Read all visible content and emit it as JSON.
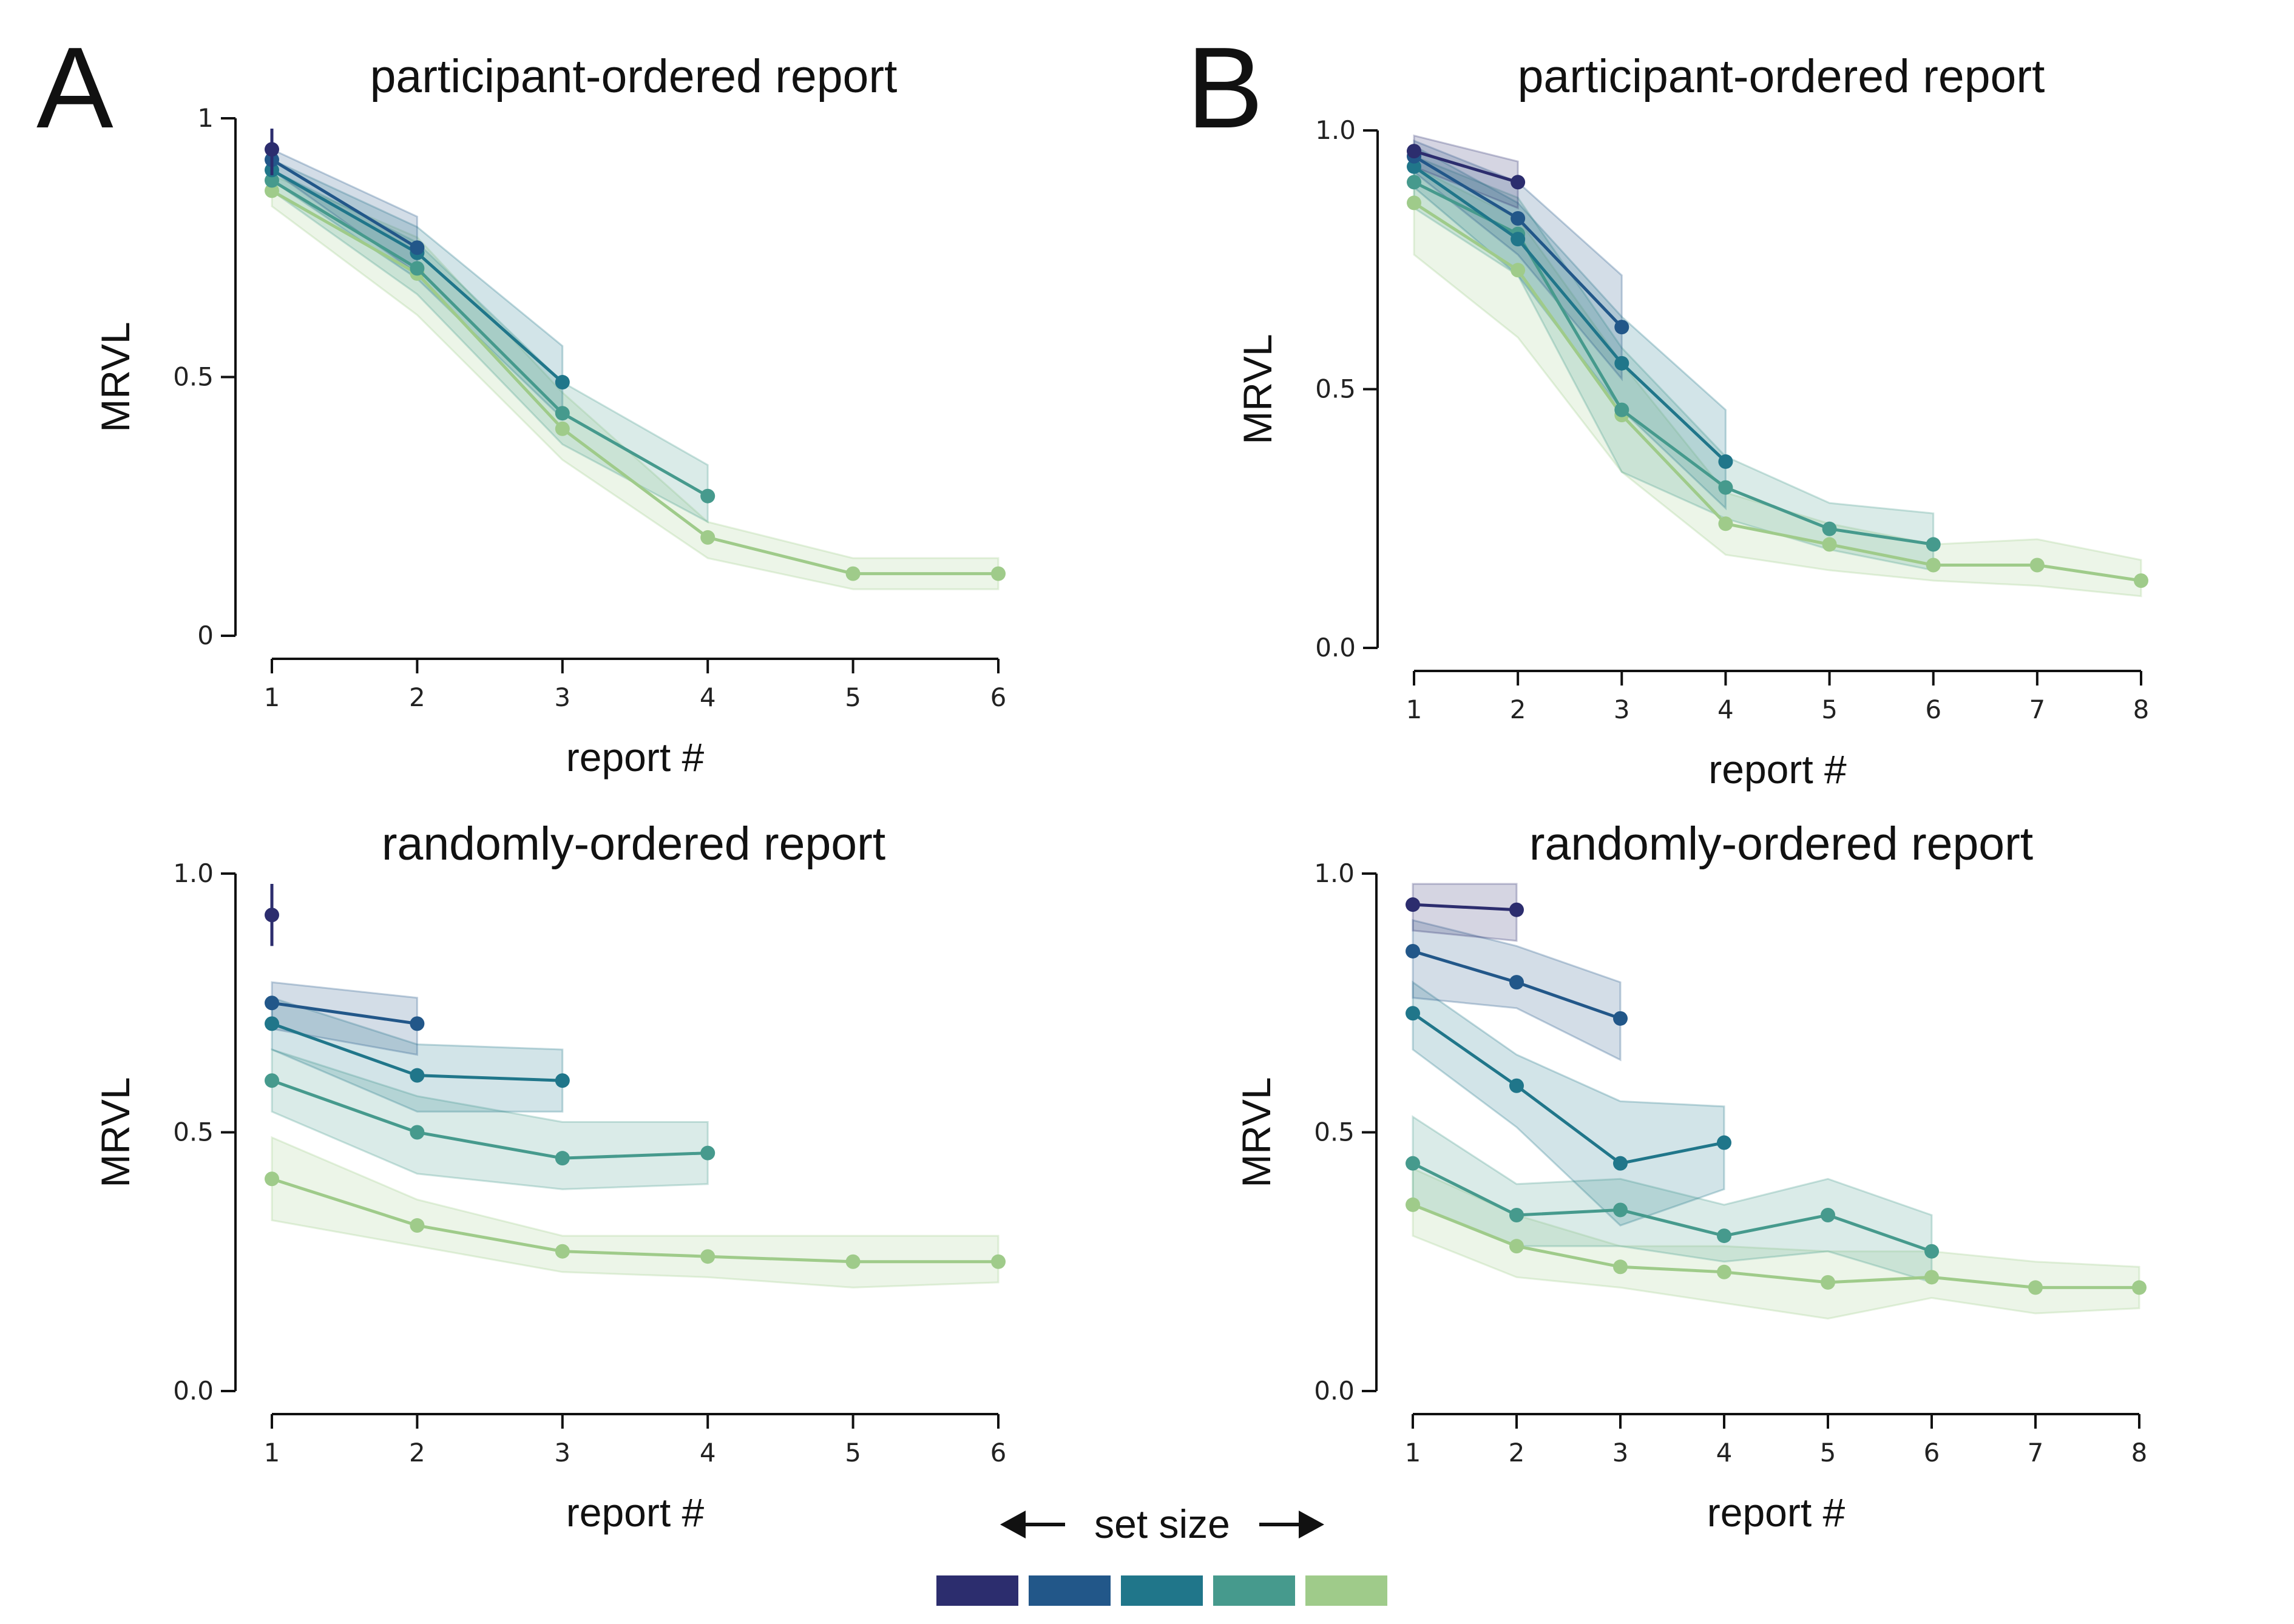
{
  "panel_letters": [
    "A",
    "B"
  ],
  "legend": {
    "label": "set size",
    "colors": [
      "#2c2d6e",
      "#225789",
      "#20768a",
      "#469a8d",
      "#9fcb8a"
    ]
  },
  "chart_data": [
    {
      "type": "line",
      "panel": "A",
      "title": "participant-ordered report",
      "xlabel": "report #",
      "ylabel": "MRVL",
      "xlim": [
        1,
        6
      ],
      "ylim": [
        0,
        1
      ],
      "xticks": [
        "1",
        "2",
        "3",
        "4",
        "5",
        "6"
      ],
      "yticks": [
        {
          "value": 0,
          "label": "0"
        },
        {
          "value": 0.5,
          "label": "0.5"
        },
        {
          "value": 1,
          "label": "1"
        }
      ],
      "grid": false,
      "series": [
        {
          "color": "#2c2d6e",
          "x": [
            1
          ],
          "y": [
            0.94
          ],
          "lower": [
            0.89
          ],
          "upper": [
            0.98
          ],
          "errbar": true
        },
        {
          "color": "#225789",
          "x": [
            1,
            2
          ],
          "y": [
            0.92,
            0.75
          ],
          "lower": [
            0.9,
            0.7
          ],
          "upper": [
            0.94,
            0.81
          ]
        },
        {
          "color": "#20768a",
          "x": [
            1,
            2,
            3
          ],
          "y": [
            0.9,
            0.74,
            0.49
          ],
          "lower": [
            0.88,
            0.69,
            0.42
          ],
          "upper": [
            0.92,
            0.79,
            0.56
          ]
        },
        {
          "color": "#469a8d",
          "x": [
            1,
            2,
            3,
            4
          ],
          "y": [
            0.88,
            0.71,
            0.43,
            0.27
          ],
          "lower": [
            0.86,
            0.66,
            0.37,
            0.22
          ],
          "upper": [
            0.9,
            0.76,
            0.49,
            0.33
          ]
        },
        {
          "color": "#9fcb8a",
          "x": [
            1,
            2,
            3,
            4,
            5,
            6
          ],
          "y": [
            0.86,
            0.7,
            0.4,
            0.19,
            0.12,
            0.12
          ],
          "lower": [
            0.83,
            0.62,
            0.34,
            0.15,
            0.09,
            0.09
          ],
          "upper": [
            0.89,
            0.77,
            0.47,
            0.22,
            0.15,
            0.15
          ]
        }
      ]
    },
    {
      "type": "line",
      "panel": "B",
      "title": "participant-ordered report",
      "xlabel": "report #",
      "ylabel": "MRVL",
      "xlim": [
        1,
        8
      ],
      "ylim": [
        0,
        1
      ],
      "xticks": [
        "1",
        "2",
        "3",
        "4",
        "5",
        "6",
        "7",
        "8"
      ],
      "yticks": [
        {
          "value": 0,
          "label": "0.0"
        },
        {
          "value": 0.5,
          "label": "0.5"
        },
        {
          "value": 1,
          "label": "1.0"
        }
      ],
      "grid": false,
      "series": [
        {
          "color": "#2c2d6e",
          "x": [
            1,
            2
          ],
          "y": [
            0.96,
            0.9
          ],
          "lower": [
            0.93,
            0.85
          ],
          "upper": [
            0.99,
            0.94
          ]
        },
        {
          "color": "#225789",
          "x": [
            1,
            2,
            3
          ],
          "y": [
            0.95,
            0.83,
            0.62
          ],
          "lower": [
            0.92,
            0.76,
            0.52
          ],
          "upper": [
            0.98,
            0.9,
            0.72
          ]
        },
        {
          "color": "#20768a",
          "x": [
            1,
            2,
            3,
            4
          ],
          "y": [
            0.93,
            0.79,
            0.55,
            0.36
          ],
          "lower": [
            0.89,
            0.72,
            0.46,
            0.27
          ],
          "upper": [
            0.97,
            0.86,
            0.64,
            0.46
          ]
        },
        {
          "color": "#469a8d",
          "x": [
            1,
            2,
            3,
            4,
            5,
            6
          ],
          "y": [
            0.9,
            0.8,
            0.46,
            0.31,
            0.23,
            0.2
          ],
          "lower": [
            0.85,
            0.72,
            0.34,
            0.25,
            0.19,
            0.15
          ],
          "upper": [
            0.95,
            0.87,
            0.58,
            0.37,
            0.28,
            0.26
          ]
        },
        {
          "color": "#9fcb8a",
          "x": [
            1,
            2,
            3,
            4,
            5,
            6,
            7,
            8
          ],
          "y": [
            0.86,
            0.73,
            0.45,
            0.24,
            0.2,
            0.16,
            0.16,
            0.13
          ],
          "lower": [
            0.76,
            0.6,
            0.34,
            0.18,
            0.15,
            0.13,
            0.12,
            0.1
          ],
          "upper": [
            0.93,
            0.83,
            0.55,
            0.3,
            0.24,
            0.2,
            0.21,
            0.17
          ]
        }
      ]
    },
    {
      "type": "line",
      "panel": "A",
      "title": "randomly-ordered report",
      "xlabel": "report #",
      "ylabel": "MRVL",
      "xlim": [
        1,
        6
      ],
      "ylim": [
        0,
        1
      ],
      "xticks": [
        "1",
        "2",
        "3",
        "4",
        "5",
        "6"
      ],
      "yticks": [
        {
          "value": 0,
          "label": "0.0"
        },
        {
          "value": 0.5,
          "label": "0.5"
        },
        {
          "value": 1,
          "label": "1.0"
        }
      ],
      "grid": false,
      "series": [
        {
          "color": "#2c2d6e",
          "x": [
            1
          ],
          "y": [
            0.92
          ],
          "lower": [
            0.86
          ],
          "upper": [
            0.98
          ],
          "errbar": true
        },
        {
          "color": "#225789",
          "x": [
            1,
            2
          ],
          "y": [
            0.75,
            0.71
          ],
          "lower": [
            0.7,
            0.65
          ],
          "upper": [
            0.79,
            0.76
          ]
        },
        {
          "color": "#20768a",
          "x": [
            1,
            2,
            3
          ],
          "y": [
            0.71,
            0.61,
            0.6
          ],
          "lower": [
            0.66,
            0.54,
            0.54
          ],
          "upper": [
            0.76,
            0.67,
            0.66
          ]
        },
        {
          "color": "#469a8d",
          "x": [
            1,
            2,
            3,
            4
          ],
          "y": [
            0.6,
            0.5,
            0.45,
            0.46
          ],
          "lower": [
            0.54,
            0.42,
            0.39,
            0.4
          ],
          "upper": [
            0.66,
            0.57,
            0.52,
            0.52
          ]
        },
        {
          "color": "#9fcb8a",
          "x": [
            1,
            2,
            3,
            4,
            5,
            6
          ],
          "y": [
            0.41,
            0.32,
            0.27,
            0.26,
            0.25,
            0.25
          ],
          "lower": [
            0.33,
            0.28,
            0.23,
            0.22,
            0.2,
            0.21
          ],
          "upper": [
            0.49,
            0.37,
            0.3,
            0.3,
            0.3,
            0.3
          ]
        }
      ]
    },
    {
      "type": "line",
      "panel": "B",
      "title": "randomly-ordered report",
      "xlabel": "report #",
      "ylabel": "MRVL",
      "xlim": [
        1,
        8
      ],
      "ylim": [
        0,
        1
      ],
      "xticks": [
        "1",
        "2",
        "3",
        "4",
        "5",
        "6",
        "7",
        "8"
      ],
      "yticks": [
        {
          "value": 0,
          "label": "0.0"
        },
        {
          "value": 0.5,
          "label": "0.5"
        },
        {
          "value": 1,
          "label": "1.0"
        }
      ],
      "grid": false,
      "series": [
        {
          "color": "#2c2d6e",
          "x": [
            1,
            2
          ],
          "y": [
            0.94,
            0.93
          ],
          "lower": [
            0.89,
            0.87
          ],
          "upper": [
            0.98,
            0.98
          ]
        },
        {
          "color": "#225789",
          "x": [
            1,
            2,
            3
          ],
          "y": [
            0.85,
            0.79,
            0.72
          ],
          "lower": [
            0.76,
            0.74,
            0.64
          ],
          "upper": [
            0.91,
            0.86,
            0.79
          ]
        },
        {
          "color": "#20768a",
          "x": [
            1,
            2,
            3,
            4
          ],
          "y": [
            0.73,
            0.59,
            0.44,
            0.48
          ],
          "lower": [
            0.66,
            0.51,
            0.32,
            0.39
          ],
          "upper": [
            0.79,
            0.65,
            0.56,
            0.55
          ]
        },
        {
          "color": "#469a8d",
          "x": [
            1,
            2,
            3,
            4,
            5,
            6
          ],
          "y": [
            0.44,
            0.34,
            0.35,
            0.3,
            0.34,
            0.27
          ],
          "lower": [
            0.36,
            0.28,
            0.28,
            0.25,
            0.27,
            0.21
          ],
          "upper": [
            0.53,
            0.4,
            0.41,
            0.36,
            0.41,
            0.34
          ]
        },
        {
          "color": "#9fcb8a",
          "x": [
            1,
            2,
            3,
            4,
            5,
            6,
            7,
            8
          ],
          "y": [
            0.36,
            0.28,
            0.24,
            0.23,
            0.21,
            0.22,
            0.2,
            0.2
          ],
          "lower": [
            0.3,
            0.22,
            0.2,
            0.17,
            0.14,
            0.18,
            0.15,
            0.16
          ],
          "upper": [
            0.43,
            0.34,
            0.28,
            0.28,
            0.27,
            0.27,
            0.25,
            0.24
          ]
        }
      ]
    }
  ]
}
